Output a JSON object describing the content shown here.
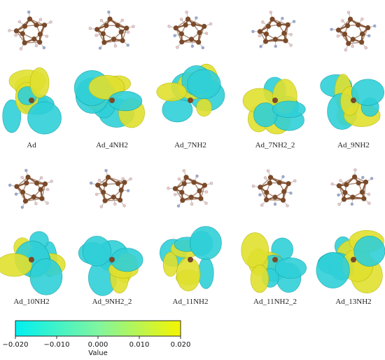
{
  "labels": [
    "Ad",
    "Ad_4NH2",
    "Ad_7NH2",
    "Ad_7NH2_2",
    "Ad_9NH2",
    "Ad_10NH2",
    "Ad_9NH2_2",
    "Ad_11NH2",
    "Ad_11NH2_2",
    "Ad_13NH2"
  ],
  "colorbar": {
    "label": "Value",
    "lim": [
      -0.02,
      0.02
    ],
    "ticks": [
      {
        "value": -0.02,
        "label": "−0.020"
      },
      {
        "value": -0.01,
        "label": "−0.010"
      },
      {
        "value": 0,
        "label": "0.000"
      },
      {
        "value": 0.01,
        "label": "0.010"
      },
      {
        "value": 0.02,
        "label": "0.020"
      }
    ]
  }
}
